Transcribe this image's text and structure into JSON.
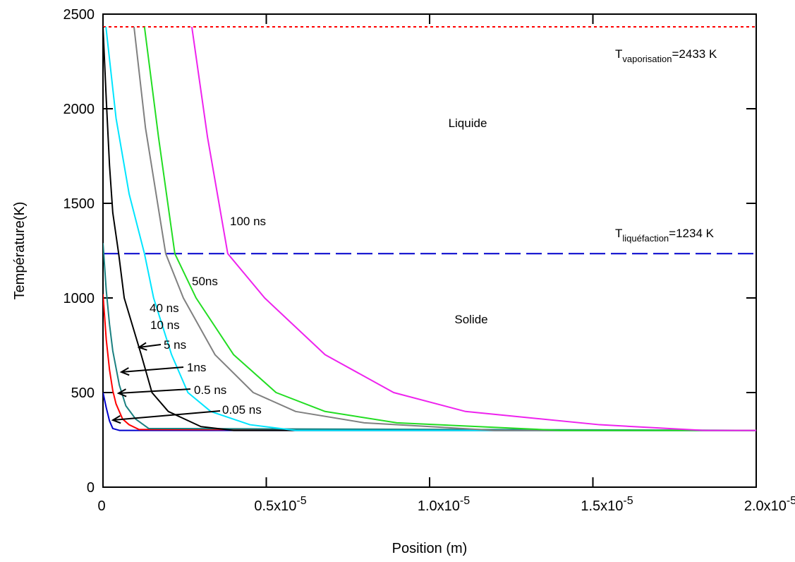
{
  "chart_data": {
    "type": "line",
    "xlabel": "Position (m)",
    "ylabel": "Température(K)",
    "xlim": [
      0,
      2e-05
    ],
    "ylim": [
      0,
      2500
    ],
    "xticks": [
      {
        "value": 0,
        "label": "0"
      },
      {
        "value": 5e-06,
        "label": "0.5x10",
        "exponent": "-5"
      },
      {
        "value": 1e-05,
        "label": "1.0x10",
        "exponent": "-5"
      },
      {
        "value": 1.5e-05,
        "label": "1.5x10",
        "exponent": "-5"
      },
      {
        "value": 2e-05,
        "label": "2.0x10",
        "exponent": "-5"
      }
    ],
    "yticks": [
      0,
      500,
      1000,
      1500,
      2000,
      2500
    ],
    "reference_lines": [
      {
        "value": 2433,
        "label": "T",
        "subscript": "vaporisation",
        "suffix": "=2433 K",
        "color": "#ff0000",
        "style": "dotted"
      },
      {
        "value": 1234,
        "label": "T",
        "subscript": "liquéfaction",
        "suffix": "=1234 K",
        "color": "#0000cc",
        "style": "dashed"
      }
    ],
    "annotations": [
      "Liquide",
      "Solide"
    ],
    "series": [
      {
        "name": "0.05 ns",
        "color": "#0000cc",
        "x": [
          0,
          1e-07,
          2e-07,
          3e-07,
          5e-07,
          2e-05
        ],
        "values": [
          500,
          420,
          350,
          310,
          300,
          300
        ]
      },
      {
        "name": "0.5 ns",
        "color": "#ff0000",
        "x": [
          0,
          1e-07,
          2e-07,
          3e-07,
          4e-07,
          6e-07,
          8e-07,
          1.1e-06,
          2e-05
        ],
        "values": [
          1020,
          780,
          620,
          510,
          440,
          360,
          330,
          305,
          300
        ]
      },
      {
        "name": "1ns",
        "color": "#1a8080",
        "x": [
          0,
          1e-07,
          2e-07,
          3e-07,
          5e-07,
          7e-07,
          1e-06,
          1.4e-06,
          2e-05
        ],
        "values": [
          1290,
          1040,
          860,
          720,
          540,
          430,
          360,
          310,
          300
        ]
      },
      {
        "name": "5 ns",
        "color": "#000000",
        "x": [
          0,
          1e-07,
          2e-07,
          3e-07,
          4.8e-07,
          6.5e-07,
          1.17e-06,
          1.5e-06,
          2e-06,
          3e-06,
          4e-06,
          2e-05
        ],
        "values": [
          2433,
          2050,
          1700,
          1450,
          1234,
          1000,
          700,
          500,
          400,
          320,
          300,
          300
        ]
      },
      {
        "name": "10 ns",
        "color": "#00e5ff",
        "x": [
          9e-08,
          4e-07,
          8e-07,
          1.27e-06,
          1.55e-06,
          2.1e-06,
          2.6e-06,
          3.3e-06,
          4.5e-06,
          5.9e-06,
          2e-05
        ],
        "values": [
          2433,
          1950,
          1550,
          1234,
          1000,
          700,
          500,
          400,
          330,
          300,
          300
        ]
      },
      {
        "name": "40 ns",
        "color": "#808080",
        "x": [
          9.5e-07,
          1.3e-06,
          1.92e-06,
          2.46e-06,
          3.43e-06,
          4.6e-06,
          5.9e-06,
          8e-06,
          1.2e-05,
          2e-05
        ],
        "values": [
          2433,
          1900,
          1234,
          1000,
          700,
          500,
          400,
          340,
          300,
          300
        ]
      },
      {
        "name": "50ns",
        "color": "#22dd22",
        "x": [
          1.27e-06,
          1.7e-06,
          2.2e-06,
          2.85e-06,
          4e-06,
          5.3e-06,
          6.8e-06,
          9e-06,
          1.4e-05,
          2e-05
        ],
        "values": [
          2433,
          1850,
          1234,
          1000,
          700,
          500,
          400,
          340,
          300,
          300
        ]
      },
      {
        "name": "100 ns",
        "color": "#ee22ee",
        "x": [
          2.72e-06,
          3.2e-06,
          3.82e-06,
          4.95e-06,
          6.8e-06,
          8.9e-06,
          1.11e-05,
          1.52e-05,
          1.84e-05,
          2e-05
        ],
        "values": [
          2433,
          1850,
          1234,
          1000,
          700,
          500,
          400,
          330,
          300,
          300
        ]
      }
    ]
  }
}
